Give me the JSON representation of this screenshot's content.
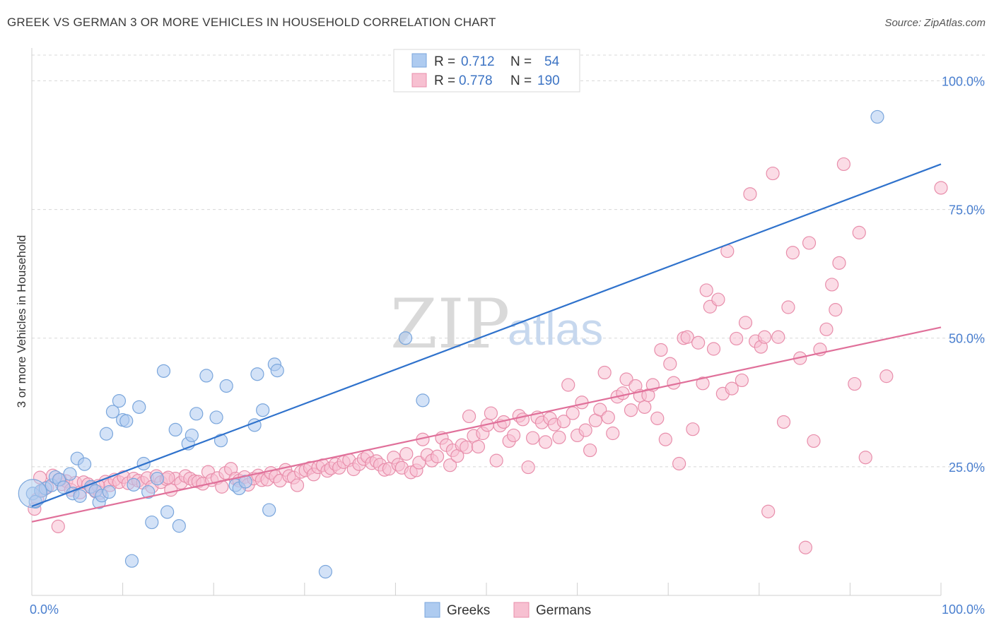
{
  "title": "GREEK VS GERMAN 3 OR MORE VEHICLES IN HOUSEHOLD CORRELATION CHART",
  "source": "Source: ZipAtlas.com",
  "watermark": {
    "zip": "ZIP",
    "atlas": "atlas"
  },
  "legend": {
    "r_label": "R =",
    "n_label": "N =",
    "items": [
      {
        "r": "0.712",
        "n": "54"
      },
      {
        "r": "0.778",
        "n": "190"
      }
    ]
  },
  "bottom_legend": [
    "Greeks",
    "Germans"
  ],
  "colors": {
    "greeks_fill": "#aecbf0",
    "greeks_stroke": "#7aa6dc",
    "greeks_line": "#2f72cc",
    "germans_fill": "#f7c0d1",
    "germans_stroke": "#e88eab",
    "germans_line": "#e0709a",
    "grid": "#d8d8d8",
    "tick_label": "#4a7fcf"
  },
  "chart_data": {
    "type": "scatter",
    "title": "GREEK VS GERMAN 3 OR MORE VEHICLES IN HOUSEHOLD CORRELATION CHART",
    "xlabel": "",
    "ylabel": "3 or more Vehicles in Household",
    "xlim": [
      0,
      100
    ],
    "ylim": [
      0,
      105
    ],
    "x_tick_labels": [
      "0.0%",
      "100.0%"
    ],
    "y_ticks": [
      25,
      50,
      75,
      100
    ],
    "y_tick_labels": [
      "25.0%",
      "50.0%",
      "75.0%",
      "100.0%"
    ],
    "grid": true,
    "legend_position": "top-center",
    "series": [
      {
        "name": "Greeks",
        "r": 0.712,
        "n": 54,
        "trend": {
          "x0": 0,
          "y0": 17.3,
          "x1": 100,
          "y1": 83.8
        },
        "points": [
          [
            0.1,
            19.8
          ],
          [
            0.4,
            18.2
          ],
          [
            1.0,
            20.3
          ],
          [
            1.5,
            20.8
          ],
          [
            2.2,
            21.4
          ],
          [
            2.6,
            23.0
          ],
          [
            3.0,
            22.5
          ],
          [
            3.5,
            21.0
          ],
          [
            4.2,
            23.6
          ],
          [
            4.5,
            19.8
          ],
          [
            5.0,
            26.6
          ],
          [
            5.3,
            19.3
          ],
          [
            5.8,
            25.5
          ],
          [
            6.5,
            21.1
          ],
          [
            7.0,
            20.3
          ],
          [
            7.4,
            18.1
          ],
          [
            7.7,
            19.4
          ],
          [
            8.2,
            31.4
          ],
          [
            8.5,
            20.1
          ],
          [
            8.9,
            35.7
          ],
          [
            9.6,
            37.8
          ],
          [
            10.0,
            34.1
          ],
          [
            10.4,
            33.9
          ],
          [
            11.0,
            6.7
          ],
          [
            11.2,
            21.5
          ],
          [
            11.8,
            36.6
          ],
          [
            12.3,
            25.6
          ],
          [
            12.8,
            20.1
          ],
          [
            13.2,
            14.2
          ],
          [
            13.8,
            22.7
          ],
          [
            14.5,
            43.6
          ],
          [
            14.9,
            16.2
          ],
          [
            15.8,
            32.2
          ],
          [
            16.2,
            13.5
          ],
          [
            17.2,
            29.5
          ],
          [
            17.6,
            31.1
          ],
          [
            18.1,
            35.3
          ],
          [
            19.2,
            42.7
          ],
          [
            20.3,
            34.6
          ],
          [
            20.8,
            30.1
          ],
          [
            21.4,
            40.7
          ],
          [
            22.4,
            21.4
          ],
          [
            22.8,
            20.8
          ],
          [
            23.5,
            22.1
          ],
          [
            24.5,
            33.1
          ],
          [
            24.8,
            43.0
          ],
          [
            25.4,
            36.0
          ],
          [
            26.1,
            16.6
          ],
          [
            26.7,
            44.9
          ],
          [
            27.0,
            43.7
          ],
          [
            32.3,
            4.6
          ],
          [
            41.1,
            50.0
          ],
          [
            43.0,
            37.9
          ],
          [
            93.0,
            93.0
          ]
        ]
      },
      {
        "name": "Germans",
        "r": 0.778,
        "n": 190,
        "trend": {
          "x0": 0,
          "y0": 14.3,
          "x1": 100,
          "y1": 52.1
        },
        "points": [
          [
            0.3,
            16.8
          ],
          [
            0.6,
            18.7
          ],
          [
            1.2,
            20.4
          ],
          [
            1.7,
            21.0
          ],
          [
            2.3,
            23.3
          ],
          [
            2.9,
            13.4
          ],
          [
            3.3,
            21.6
          ],
          [
            3.8,
            22.2
          ],
          [
            4.3,
            20.5
          ],
          [
            4.8,
            21.9
          ],
          [
            5.3,
            20.0
          ],
          [
            5.7,
            22.0
          ],
          [
            6.2,
            21.6
          ],
          [
            6.6,
            20.9
          ],
          [
            7.0,
            20.2
          ],
          [
            7.5,
            19.9
          ],
          [
            8.1,
            22.1
          ],
          [
            8.6,
            21.4
          ],
          [
            9.1,
            22.5
          ],
          [
            9.6,
            22.0
          ],
          [
            10.1,
            23.0
          ],
          [
            10.6,
            21.8
          ],
          [
            11.2,
            22.7
          ],
          [
            11.7,
            22.3
          ],
          [
            12.2,
            21.9
          ],
          [
            12.7,
            22.8
          ],
          [
            13.2,
            21.1
          ],
          [
            13.7,
            23.2
          ],
          [
            14.2,
            22.0
          ],
          [
            14.8,
            22.6
          ],
          [
            15.3,
            20.5
          ],
          [
            15.8,
            22.7
          ],
          [
            16.4,
            21.9
          ],
          [
            16.9,
            23.2
          ],
          [
            17.4,
            22.7
          ],
          [
            17.9,
            22.2
          ],
          [
            18.3,
            22.1
          ],
          [
            18.8,
            21.7
          ],
          [
            19.4,
            24.0
          ],
          [
            19.8,
            22.4
          ],
          [
            20.4,
            22.8
          ],
          [
            20.9,
            21.1
          ],
          [
            21.3,
            23.8
          ],
          [
            21.9,
            24.6
          ],
          [
            22.4,
            22.7
          ],
          [
            22.8,
            22.3
          ],
          [
            23.4,
            23.0
          ],
          [
            23.8,
            21.5
          ],
          [
            24.4,
            22.7
          ],
          [
            24.9,
            23.3
          ],
          [
            25.3,
            22.4
          ],
          [
            25.9,
            22.5
          ],
          [
            26.3,
            23.8
          ],
          [
            26.8,
            23.1
          ],
          [
            27.3,
            22.3
          ],
          [
            27.9,
            24.4
          ],
          [
            28.3,
            23.2
          ],
          [
            28.8,
            22.9
          ],
          [
            29.2,
            21.4
          ],
          [
            29.6,
            24.0
          ],
          [
            30.1,
            24.3
          ],
          [
            30.6,
            24.8
          ],
          [
            31.0,
            23.5
          ],
          [
            31.5,
            24.9
          ],
          [
            32.0,
            25.3
          ],
          [
            32.5,
            24.2
          ],
          [
            32.9,
            24.7
          ],
          [
            33.4,
            25.5
          ],
          [
            33.8,
            24.8
          ],
          [
            34.3,
            25.9
          ],
          [
            34.9,
            26.3
          ],
          [
            35.4,
            24.5
          ],
          [
            36.0,
            25.5
          ],
          [
            36.5,
            26.5
          ],
          [
            36.9,
            27.0
          ],
          [
            37.4,
            25.7
          ],
          [
            37.9,
            26.1
          ],
          [
            38.3,
            25.4
          ],
          [
            38.8,
            24.4
          ],
          [
            39.3,
            24.6
          ],
          [
            39.8,
            26.8
          ],
          [
            40.3,
            25.4
          ],
          [
            40.7,
            24.8
          ],
          [
            41.2,
            27.5
          ],
          [
            41.7,
            23.9
          ],
          [
            42.3,
            24.3
          ],
          [
            42.6,
            25.8
          ],
          [
            43.0,
            30.3
          ],
          [
            43.5,
            27.3
          ],
          [
            44.0,
            26.2
          ],
          [
            44.6,
            27.0
          ],
          [
            45.1,
            30.6
          ],
          [
            45.6,
            29.2
          ],
          [
            46.0,
            25.3
          ],
          [
            46.3,
            28.2
          ],
          [
            46.8,
            27.1
          ],
          [
            47.3,
            29.2
          ],
          [
            47.8,
            28.8
          ],
          [
            48.1,
            34.8
          ],
          [
            48.6,
            31.0
          ],
          [
            49.1,
            28.9
          ],
          [
            49.6,
            31.5
          ],
          [
            50.1,
            33.1
          ],
          [
            50.5,
            35.4
          ],
          [
            51.1,
            26.2
          ],
          [
            51.5,
            33.0
          ],
          [
            51.9,
            33.7
          ],
          [
            52.5,
            30.0
          ],
          [
            53.0,
            31.1
          ],
          [
            53.6,
            34.9
          ],
          [
            54.0,
            34.2
          ],
          [
            54.6,
            24.9
          ],
          [
            55.1,
            30.6
          ],
          [
            55.6,
            34.6
          ],
          [
            56.1,
            33.6
          ],
          [
            56.5,
            29.8
          ],
          [
            57.0,
            34.4
          ],
          [
            57.5,
            33.2
          ],
          [
            58.0,
            30.7
          ],
          [
            58.5,
            33.8
          ],
          [
            59.0,
            40.9
          ],
          [
            59.5,
            35.4
          ],
          [
            60.0,
            31.1
          ],
          [
            60.5,
            37.5
          ],
          [
            60.9,
            32.1
          ],
          [
            61.4,
            28.2
          ],
          [
            62.0,
            34.0
          ],
          [
            62.5,
            36.1
          ],
          [
            63.0,
            43.3
          ],
          [
            63.4,
            34.6
          ],
          [
            63.9,
            31.5
          ],
          [
            64.4,
            38.6
          ],
          [
            65.0,
            39.3
          ],
          [
            65.4,
            42.0
          ],
          [
            65.9,
            36.0
          ],
          [
            66.4,
            40.7
          ],
          [
            66.9,
            38.8
          ],
          [
            67.4,
            36.6
          ],
          [
            67.8,
            38.9
          ],
          [
            68.3,
            40.9
          ],
          [
            68.8,
            34.4
          ],
          [
            69.2,
            47.7
          ],
          [
            69.7,
            30.3
          ],
          [
            70.2,
            45.0
          ],
          [
            70.6,
            41.3
          ],
          [
            71.2,
            25.6
          ],
          [
            71.7,
            50.0
          ],
          [
            72.1,
            50.2
          ],
          [
            72.7,
            32.3
          ],
          [
            73.3,
            49.1
          ],
          [
            73.8,
            41.2
          ],
          [
            74.2,
            59.3
          ],
          [
            74.6,
            56.1
          ],
          [
            75.0,
            47.9
          ],
          [
            75.5,
            57.5
          ],
          [
            76.0,
            39.2
          ],
          [
            76.5,
            66.9
          ],
          [
            77.0,
            40.2
          ],
          [
            77.5,
            49.9
          ],
          [
            78.1,
            41.8
          ],
          [
            78.5,
            53.0
          ],
          [
            79.0,
            78.0
          ],
          [
            79.6,
            49.4
          ],
          [
            80.2,
            48.3
          ],
          [
            80.6,
            50.2
          ],
          [
            81.0,
            16.3
          ],
          [
            81.5,
            82.0
          ],
          [
            82.1,
            50.2
          ],
          [
            82.7,
            33.7
          ],
          [
            83.2,
            56.0
          ],
          [
            83.7,
            66.6
          ],
          [
            84.5,
            46.1
          ],
          [
            85.1,
            9.3
          ],
          [
            85.5,
            68.5
          ],
          [
            86.0,
            30.0
          ],
          [
            86.7,
            47.8
          ],
          [
            87.4,
            51.7
          ],
          [
            88.0,
            60.4
          ],
          [
            88.4,
            55.5
          ],
          [
            88.8,
            64.6
          ],
          [
            89.3,
            83.8
          ],
          [
            90.5,
            41.1
          ],
          [
            91.0,
            70.5
          ],
          [
            91.7,
            26.8
          ],
          [
            94.0,
            42.6
          ],
          [
            100.0,
            79.2
          ],
          [
            0.9,
            22.9
          ],
          [
            3.1,
            22.5
          ],
          [
            7.3,
            21.3
          ],
          [
            15.0,
            22.9
          ]
        ]
      }
    ]
  }
}
